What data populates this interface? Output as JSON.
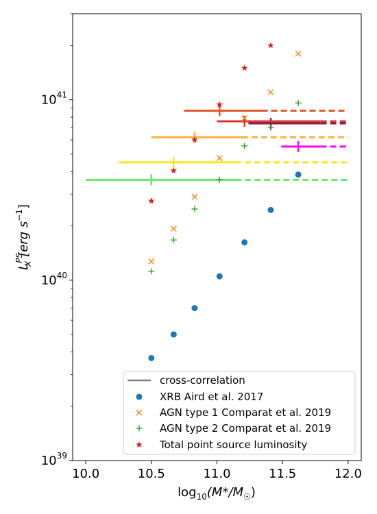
{
  "chart_data": {
    "type": "scatter",
    "xlabel_main": "log",
    "xlabel_sub": "10",
    "xlabel_rest": "(M*/M",
    "xlabel_sun": "☉",
    "xlabel_close": ")",
    "ylabel_main": "L",
    "ylabel_sub": "X",
    "ylabel_sup": "PS",
    "ylabel_units": "[erg s",
    "ylabel_units_sup": "−1",
    "ylabel_close": "]",
    "xlim": [
      9.9,
      12.1
    ],
    "ylim": [
      1e+39,
      3e+41
    ],
    "yscale": "log",
    "xticks": [
      {
        "value": 10.0,
        "label": "10.0"
      },
      {
        "value": 10.5,
        "label": "10.5"
      },
      {
        "value": 11.0,
        "label": "11.0"
      },
      {
        "value": 11.5,
        "label": "11.5"
      },
      {
        "value": 12.0,
        "label": "12.0"
      }
    ],
    "yticks": [
      {
        "value": 1e+39,
        "base": "10",
        "exp": "39"
      },
      {
        "value": 1e+40,
        "base": "10",
        "exp": "40"
      },
      {
        "value": 1e+41,
        "base": "10",
        "exp": "41"
      }
    ],
    "legend_position": "lower-right",
    "series": [
      {
        "name": "XRB Aird et al. 2017",
        "marker": "circle",
        "color": "#1f77b4",
        "points": [
          [
            10.5,
            3.7e+39
          ],
          [
            10.67,
            5e+39
          ],
          [
            10.83,
            7e+39
          ],
          [
            11.02,
            1.05e+40
          ],
          [
            11.21,
            1.62e+40
          ],
          [
            11.41,
            2.45e+40
          ],
          [
            11.62,
            3.85e+40
          ]
        ]
      },
      {
        "name": "AGN type 1 Comparat et al. 2019",
        "marker": "x",
        "color": "#ff7f0e",
        "points": [
          [
            10.5,
            1.27e+40
          ],
          [
            10.67,
            1.93e+40
          ],
          [
            10.83,
            2.9e+40
          ],
          [
            11.02,
            4.75e+40
          ],
          [
            11.21,
            7.9e+40
          ],
          [
            11.41,
            1.1e+41
          ],
          [
            11.62,
            1.8e+41
          ]
        ]
      },
      {
        "name": "AGN type 2 Comparat et al. 2019",
        "marker": "plus",
        "color": "#2ca02c",
        "points": [
          [
            10.5,
            1.12e+40
          ],
          [
            10.67,
            1.67e+40
          ],
          [
            10.83,
            2.48e+40
          ],
          [
            11.02,
            3.6e+40
          ],
          [
            11.21,
            5.55e+40
          ],
          [
            11.41,
            7e+40
          ],
          [
            11.62,
            9.6e+40
          ]
        ]
      },
      {
        "name": "Total point source luminosity",
        "marker": "star",
        "color": "#d62728",
        "points": [
          [
            10.5,
            2.75e+40
          ],
          [
            10.67,
            4.05e+40
          ],
          [
            10.83,
            6e+40
          ],
          [
            11.02,
            9.4e+40
          ],
          [
            11.21,
            1.5e+41
          ],
          [
            11.41,
            2e+41
          ]
        ]
      }
    ],
    "cross_correlation": {
      "name": "cross-correlation",
      "legend_color": "#7f7f7f",
      "segments": [
        {
          "color": "#66e666",
          "y": 3.6e+40,
          "solid": [
            10.0,
            11.14
          ],
          "dashed": [
            11.14,
            12.0
          ],
          "marker_x": 10.5
        },
        {
          "color": "#f5e61e",
          "y": 4.5e+40,
          "solid": [
            10.25,
            11.14
          ],
          "dashed": [
            11.14,
            12.0
          ],
          "marker_x": 10.67
        },
        {
          "color": "#ff00ff",
          "y": 5.5e+40,
          "solid": [
            11.49,
            11.79
          ],
          "dashed": [
            11.79,
            12.0
          ],
          "marker_x": 11.62
        },
        {
          "color": "#fbb03b",
          "y": 6.2e+40,
          "solid": [
            10.5,
            11.19
          ],
          "dashed": [
            11.19,
            12.0
          ],
          "marker_x": 10.83
        },
        {
          "color": "#8b1a4a",
          "y": 7.4e+40,
          "solid": [
            11.24,
            11.79
          ],
          "dashed": [
            11.79,
            12.0
          ],
          "marker_x": 11.41
        },
        {
          "color": "#d63a2c",
          "y": 7.6e+40,
          "solid": [
            11.0,
            11.79
          ],
          "dashed": [
            11.79,
            12.0
          ],
          "marker_x": 11.21
        },
        {
          "color": "#e0572a",
          "y": 8.7e+40,
          "solid": [
            10.75,
            11.34
          ],
          "dashed": [
            11.34,
            12.0
          ],
          "marker_x": 11.02
        }
      ]
    }
  }
}
